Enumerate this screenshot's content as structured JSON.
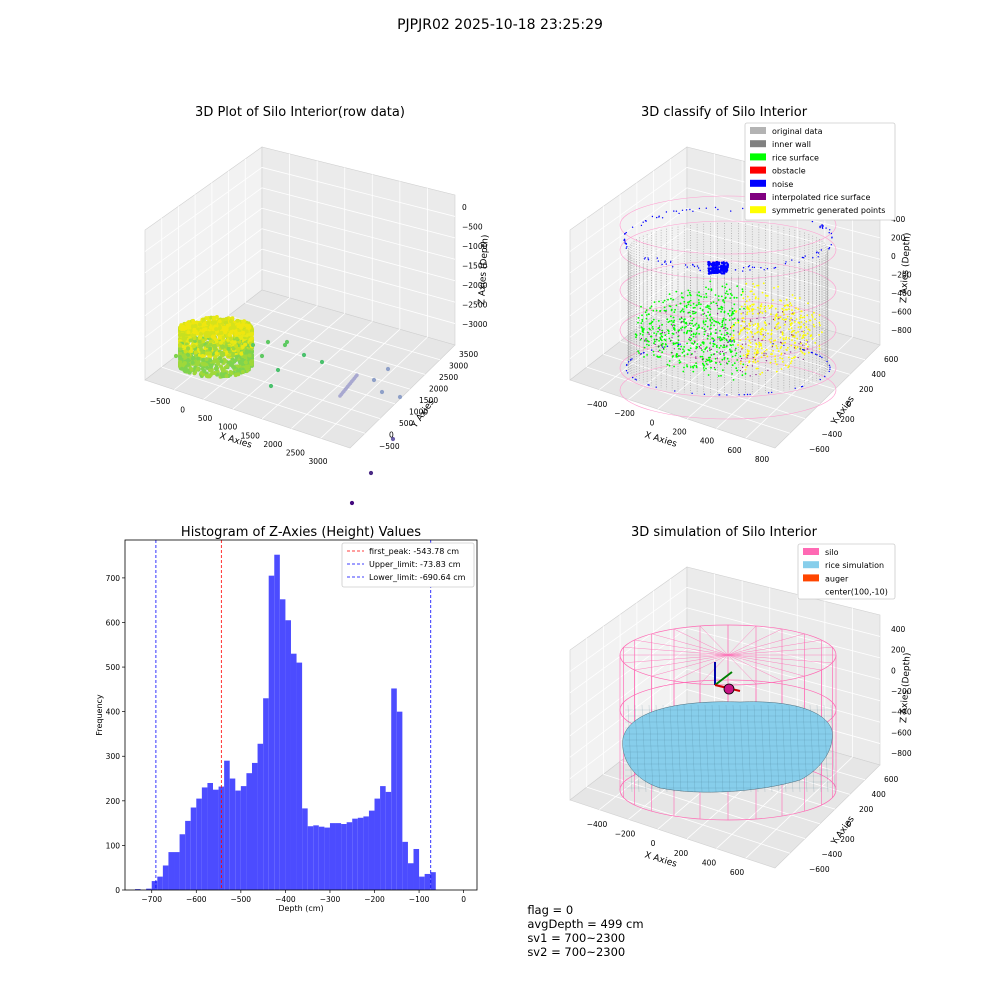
{
  "figure": {
    "suptitle": "PJPJR02 2025-10-18 23:25:29"
  },
  "status": {
    "flag": "flag = 0",
    "avg_depth": "avgDepth = 499 cm",
    "sv1": "sv1 = 700~2300",
    "sv2": "sv2 = 700~2300"
  },
  "colors": {
    "histogram_bar": "#4c4cff",
    "first_peak": "#ff0000",
    "limits": "#0000ff",
    "silo": "#ff69b4",
    "rice_simulation": "#87ceeb",
    "auger": "#ff4500",
    "original_data": "#b3b3b3",
    "inner_wall": "#808080",
    "rice_surface": "#00ff00",
    "obstacle": "#ff0000",
    "noise": "#0000ff",
    "interpolated_rice_surface": "#800080",
    "symmetric_generated_points": "#ffff00"
  },
  "chart_data": [
    {
      "type": "scatter3d",
      "title": "3D Plot of Silo Interior(row data)",
      "xlabel": "X Axies",
      "ylabel": "Y Axies",
      "zlabel": "Z Axies (Depth)",
      "x_ticks": [
        "−500",
        "0",
        "500",
        "1000",
        "1500",
        "2000",
        "2500",
        "3000"
      ],
      "y_ticks": [
        "−500",
        "0",
        "500",
        "1000",
        "1500",
        "2000",
        "2500",
        "3000",
        "3500"
      ],
      "z_ticks": [
        "0",
        "−500",
        "−1000",
        "−1500",
        "−2000",
        "−2500",
        "−3000"
      ]
    },
    {
      "type": "scatter3d",
      "title": "3D classify of Silo Interior",
      "xlabel": "X Axies",
      "ylabel": "Y Axies",
      "zlabel": "Z Axies (Depth)",
      "x_ticks": [
        "−400",
        "−200",
        "0",
        "200",
        "400",
        "600",
        "800"
      ],
      "y_ticks": [
        "−600",
        "−400",
        "−200",
        "0",
        "200",
        "400",
        "600"
      ],
      "z_ticks": [
        "400",
        "200",
        "0",
        "−200",
        "−400",
        "−600",
        "−800"
      ],
      "legend": [
        "original data",
        "inner wall",
        "rice surface",
        "obstacle",
        "noise",
        "interpolated rice surface",
        "symmetric generated points"
      ],
      "legend_placement": "top-right"
    },
    {
      "type": "bar",
      "title": "Histogram of Z-Axies (Height) Values",
      "xlabel": "Depth (cm)",
      "ylabel": "Frequency",
      "xlim": [
        -760,
        30
      ],
      "ylim": [
        0,
        785
      ],
      "bin_width": 12.5,
      "bin_start": -750,
      "values": [
        0,
        2,
        0,
        3,
        20,
        30,
        55,
        85,
        85,
        125,
        155,
        185,
        205,
        230,
        240,
        225,
        232,
        290,
        250,
        223,
        233,
        262,
        285,
        328,
        430,
        705,
        752,
        652,
        605,
        530,
        510,
        183,
        143,
        145,
        142,
        140,
        150,
        150,
        148,
        152,
        160,
        162,
        165,
        178,
        205,
        233,
        220,
        452,
        400,
        108,
        60,
        92,
        30,
        36,
        40
      ],
      "x_ticks": [
        "−700",
        "−600",
        "−500",
        "−400",
        "−300",
        "−200",
        "−100",
        "0"
      ],
      "y_ticks": [
        "0",
        "100",
        "200",
        "300",
        "400",
        "500",
        "600",
        "700"
      ],
      "lines": [
        {
          "label": "first_peak: -543.78 cm",
          "x": -543.78,
          "color": "#ff0000"
        },
        {
          "label": "Upper_limit: -73.83 cm",
          "x": -73.83,
          "color": "#0000ff"
        },
        {
          "label": "Lower_limit: -690.64 cm",
          "x": -690.64,
          "color": "#0000ff"
        }
      ],
      "legend_placement": "top-right"
    },
    {
      "type": "surface3d",
      "title": "3D simulation of Silo Interior",
      "xlabel": "X Axies",
      "ylabel": "Y Axies",
      "zlabel": "Z Axies (Depth)",
      "x_ticks": [
        "−400",
        "−200",
        "0",
        "200",
        "400",
        "600"
      ],
      "y_ticks": [
        "−600",
        "−400",
        "−200",
        "0",
        "200",
        "400",
        "600"
      ],
      "z_ticks": [
        "400",
        "200",
        "0",
        "−200",
        "−400",
        "−600",
        "−800"
      ],
      "legend": [
        "silo",
        "rice simulation",
        "auger",
        "center(100,-10)"
      ],
      "legend_placement": "top-right"
    }
  ]
}
